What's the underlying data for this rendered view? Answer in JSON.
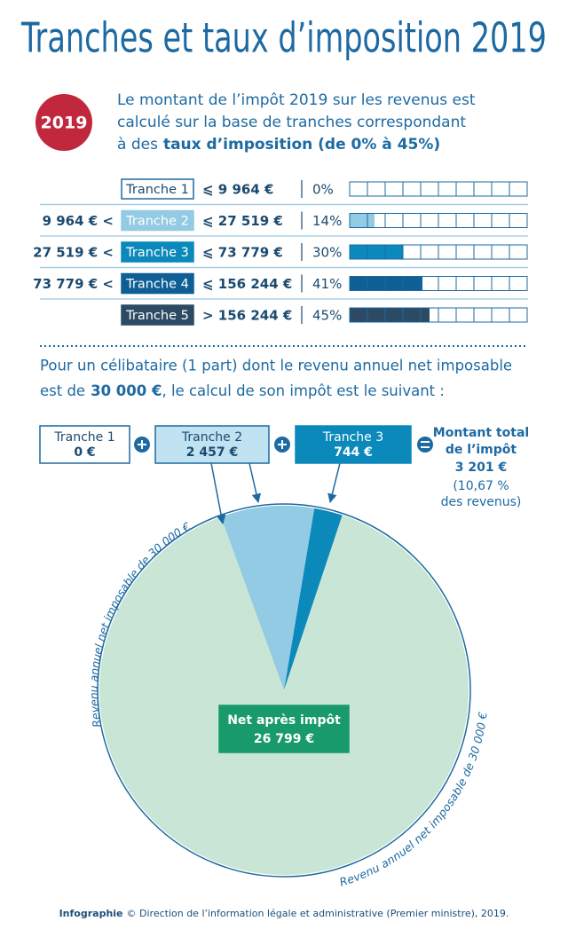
{
  "title": "Tranches et taux d’imposition 2019",
  "badge": "2019",
  "intro": {
    "line1": "Le montant de l’impôt 2019 sur les revenus est",
    "line2": "calculé sur la base de tranches correspondant",
    "line3": "à des",
    "line3_bold": "taux d’imposition (de 0% à 45%)"
  },
  "brackets": [
    {
      "name": "Tranche 1",
      "lower": null,
      "upper": "⩽ 9 964 €",
      "rate": 0,
      "rate_label": "0%",
      "color": "#ffffff"
    },
    {
      "name": "Tranche 2",
      "lower": "9 964 € <",
      "upper": "⩽ 27 519 €",
      "rate": 14,
      "rate_label": "14%",
      "color": "#92cbe3"
    },
    {
      "name": "Tranche 3",
      "lower": "27 519 € <",
      "upper": "⩽ 73 779 €",
      "rate": 30,
      "rate_label": "30%",
      "color": "#0b89ba"
    },
    {
      "name": "Tranche 4",
      "lower": "73 779 € <",
      "upper": "⩽ 156 244 €",
      "rate": 41,
      "rate_label": "41%",
      "color": "#0d5f95"
    },
    {
      "name": "Tranche 5",
      "lower": null,
      "upper": "> 156 244 €",
      "rate": 45,
      "rate_label": "45%",
      "color": "#2c4a63"
    }
  ],
  "example": {
    "line1": "Pour un célibataire (1 part) dont le revenu annuel net imposable",
    "line2": "est de",
    "line2_bold": "30 000 €",
    "line2_end": ", le calcul de son impôt est le suivant :"
  },
  "total": {
    "line1": "Montant total",
    "line2": "de l’impôt",
    "amount": "3 201 €",
    "note1": "(10,67 %",
    "note2": "des revenus)"
  },
  "chart_data": {
    "type": "pie",
    "categories": [
      "Tranche 1",
      "Tranche 2",
      "Tranche 3",
      "Net après impôt"
    ],
    "values": [
      0,
      2457,
      744,
      26799
    ],
    "value_labels": [
      "0 €",
      "2 457 €",
      "744 €",
      "26 799 €"
    ],
    "colors": [
      "#ffffff",
      "#92cbe3",
      "#0b89ba",
      "#c8e5d5"
    ],
    "ring_label": "Revenu annuel net imposable de 30 000 €"
  },
  "footer": {
    "bold": "Infographie",
    "text": "© Direction de l’information légale et administrative (Premier ministre), 2019."
  }
}
